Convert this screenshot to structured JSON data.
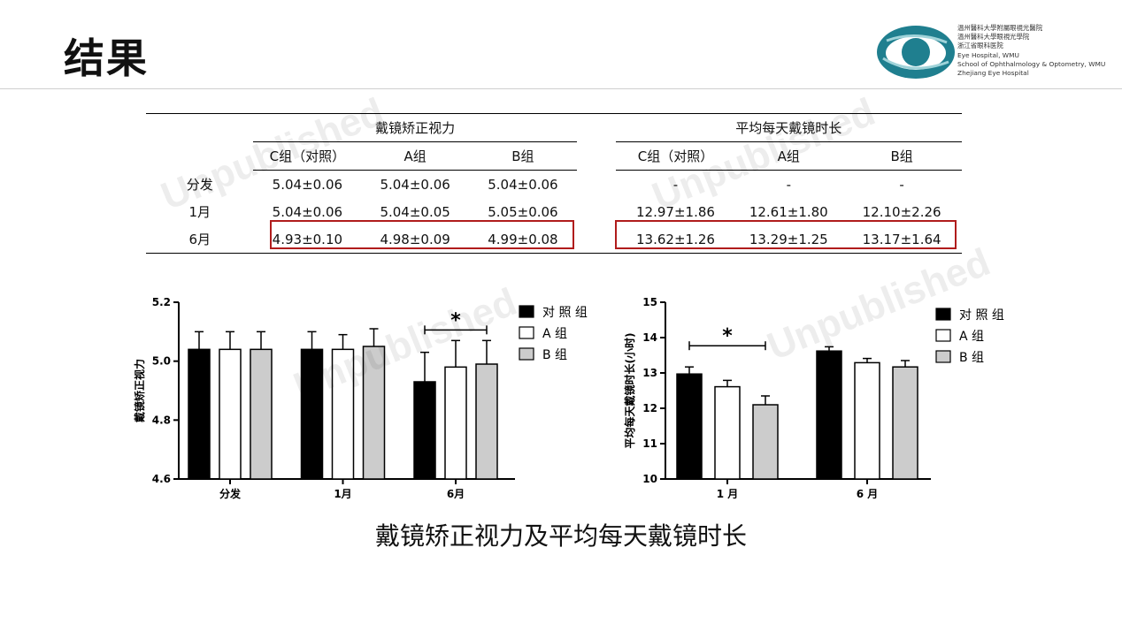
{
  "slide_title": "结果",
  "logo_text": [
    "温州醫科大學附屬眼視光醫院",
    "溫州醫科大學眼視光學院",
    "浙江省眼科医院",
    "Eye Hospital, WMU",
    "School of Ophthalmology & Optometry, WMU",
    "Zhejiang Eye Hospital"
  ],
  "watermark": "Unpublished",
  "table": {
    "group_headers": [
      "戴镜矫正视力",
      "平均每天戴镜时长"
    ],
    "columns": [
      "C组（对照）",
      "A组",
      "B组",
      "C组（对照）",
      "A组",
      "B组"
    ],
    "rows": [
      {
        "label": "分发",
        "cells": [
          "5.04±0.06",
          "5.04±0.06",
          "5.04±0.06",
          "-",
          "-",
          "-"
        ]
      },
      {
        "label": "1月",
        "cells": [
          "5.04±0.06",
          "5.04±0.05",
          "5.05±0.06",
          "12.97±1.86",
          "12.61±1.80",
          "12.10±2.26"
        ]
      },
      {
        "label": "6月",
        "cells": [
          "4.93±0.10",
          "4.98±0.09",
          "4.99±0.08",
          "13.62±1.26",
          "13.29±1.25",
          "13.17±1.64"
        ]
      }
    ]
  },
  "caption": "戴镜矫正视力及平均每天戴镜时长",
  "chart_data": [
    {
      "type": "bar",
      "categories": [
        "分发",
        "1月",
        "6月"
      ],
      "series": [
        {
          "name": "对 照 组",
          "values": [
            5.04,
            5.04,
            4.93
          ],
          "err": [
            0.06,
            0.06,
            0.1
          ],
          "color": "#000000"
        },
        {
          "name": "A 组",
          "values": [
            5.04,
            5.04,
            4.98
          ],
          "err": [
            0.06,
            0.05,
            0.09
          ],
          "color": "#ffffff"
        },
        {
          "name": "B 组",
          "values": [
            5.04,
            5.05,
            4.99
          ],
          "err": [
            0.06,
            0.06,
            0.08
          ],
          "color": "#cccccc"
        }
      ],
      "ylabel": "戴镜矫正视力",
      "ylim": [
        4.6,
        5.2
      ],
      "yticks": [
        "4.6",
        "4.8",
        "5.0",
        "5.2"
      ],
      "significance": {
        "category": "6月",
        "label": "*"
      },
      "legend": "right"
    },
    {
      "type": "bar",
      "categories": [
        "1 月",
        "6 月"
      ],
      "series": [
        {
          "name": "对 照 组",
          "values": [
            12.97,
            13.62
          ],
          "err": [
            0.2,
            0.12
          ],
          "color": "#000000"
        },
        {
          "name": "A 组",
          "values": [
            12.61,
            13.29
          ],
          "err": [
            0.18,
            0.12
          ],
          "color": "#ffffff"
        },
        {
          "name": "B 组",
          "values": [
            12.1,
            13.17
          ],
          "err": [
            0.25,
            0.18
          ],
          "color": "#cccccc"
        }
      ],
      "ylabel": "平均每天戴镜时长(小时)",
      "ylim": [
        10,
        15
      ],
      "yticks": [
        "10",
        "11",
        "12",
        "13",
        "14",
        "15"
      ],
      "significance": {
        "category": "1 月",
        "label": "*"
      },
      "legend": "right"
    }
  ]
}
